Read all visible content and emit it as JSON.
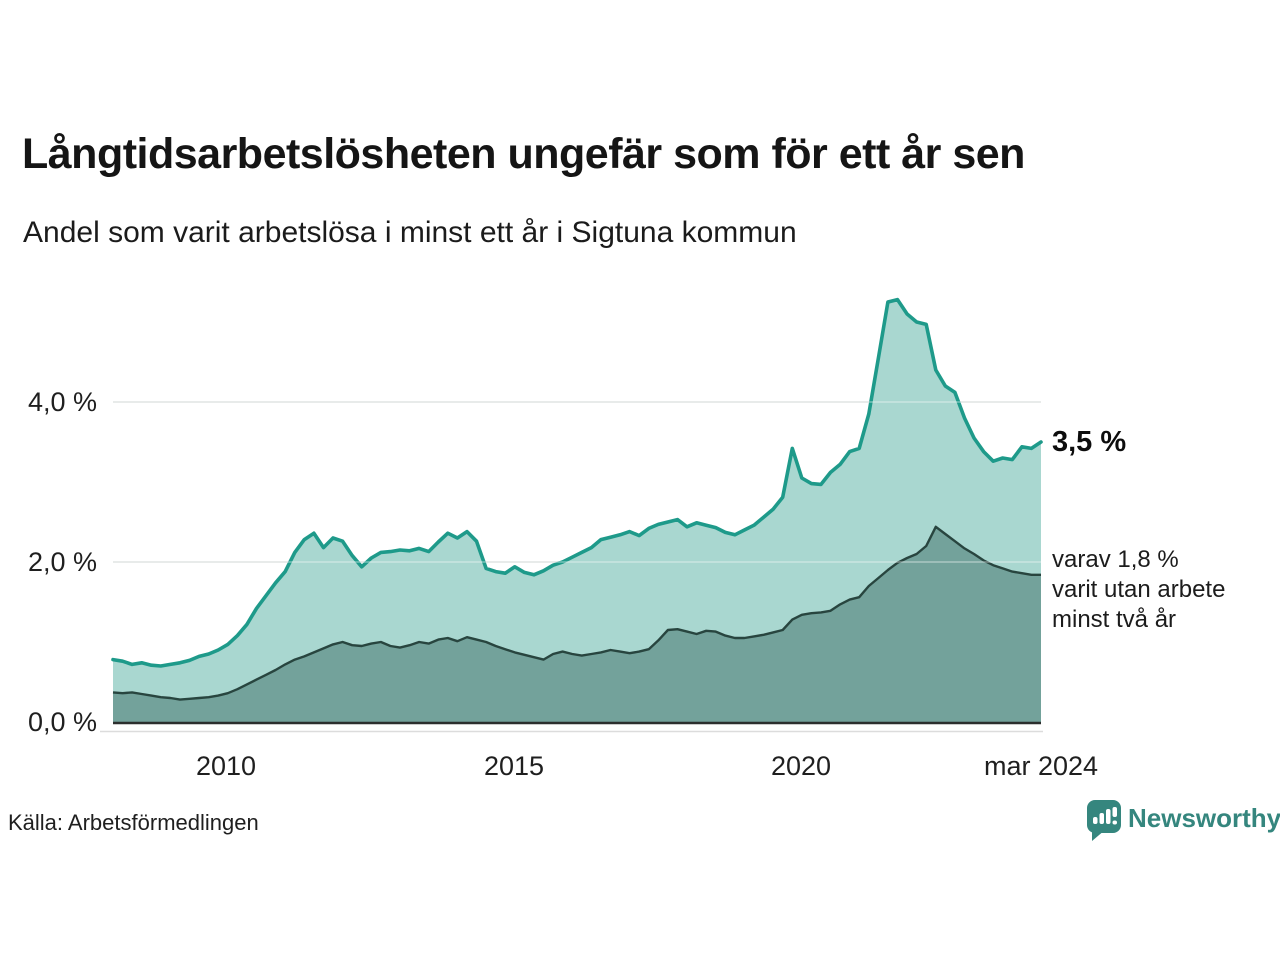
{
  "header": {
    "title": "Långtidsarbetslösheten ungefär som för ett år sen",
    "subtitle": "Andel som varit arbetslösa i minst ett år i Sigtuna kommun"
  },
  "chart_data": {
    "type": "area",
    "title": "Långtidsarbetslösheten ungefär som för ett år sen",
    "subtitle": "Andel som varit arbetslösa i minst ett år i Sigtuna kommun",
    "unit": "%",
    "x_start_year": 2008.0,
    "x_end_year": 2024.1667,
    "x_step_months": 2,
    "x_tick_labels": [
      "2010",
      "2015",
      "2020",
      "mar 2024"
    ],
    "x_tick_years": [
      2010,
      2015,
      2020,
      2024.1667
    ],
    "y_tick_labels": [
      "0,0 %",
      "2,0 %",
      "4,0 %"
    ],
    "y_tick_values": [
      0,
      2,
      4
    ],
    "y_grid_values": [
      2,
      4
    ],
    "ylim": [
      0,
      5.6
    ],
    "grid": "horizontal",
    "legend_position": "right-annotations",
    "series": [
      {
        "name": "andel arbetslösa minst ett år (totalt)",
        "end_label": "3,5 %",
        "end_value": 3.5,
        "line_color": "#1e9a8a",
        "fill_color": "#a6d5ce",
        "values": [
          0.78,
          0.76,
          0.72,
          0.74,
          0.71,
          0.7,
          0.72,
          0.74,
          0.77,
          0.82,
          0.85,
          0.9,
          0.97,
          1.08,
          1.22,
          1.42,
          1.58,
          1.74,
          1.88,
          2.12,
          2.28,
          2.36,
          2.18,
          2.3,
          2.26,
          2.08,
          1.94,
          2.05,
          2.12,
          2.13,
          2.15,
          2.14,
          2.17,
          2.13,
          2.25,
          2.36,
          2.3,
          2.38,
          2.26,
          1.92,
          1.88,
          1.86,
          1.94,
          1.87,
          1.84,
          1.89,
          1.96,
          2.0,
          2.06,
          2.12,
          2.18,
          2.28,
          2.31,
          2.34,
          2.38,
          2.33,
          2.42,
          2.47,
          2.5,
          2.53,
          2.44,
          2.49,
          2.46,
          2.43,
          2.37,
          2.34,
          2.4,
          2.46,
          2.56,
          2.66,
          2.81,
          3.42,
          3.05,
          2.98,
          2.97,
          3.12,
          3.22,
          3.38,
          3.42,
          3.85,
          4.55,
          5.25,
          5.28,
          5.1,
          5.0,
          4.97,
          4.4,
          4.2,
          4.12,
          3.8,
          3.55,
          3.38,
          3.26,
          3.3,
          3.28,
          3.44,
          3.42,
          3.5
        ]
      },
      {
        "name": "varav utan arbete minst två år",
        "end_label": "varav 1,8 % varit utan arbete minst två år",
        "end_value": 1.8,
        "line_color": "#28453f",
        "fill_color": "#73a29b",
        "values": [
          0.37,
          0.36,
          0.37,
          0.35,
          0.33,
          0.31,
          0.3,
          0.28,
          0.29,
          0.3,
          0.31,
          0.33,
          0.36,
          0.41,
          0.47,
          0.53,
          0.59,
          0.65,
          0.72,
          0.78,
          0.82,
          0.87,
          0.92,
          0.97,
          1.0,
          0.96,
          0.95,
          0.98,
          1.0,
          0.95,
          0.93,
          0.96,
          1.0,
          0.98,
          1.03,
          1.05,
          1.01,
          1.06,
          1.03,
          1.0,
          0.95,
          0.91,
          0.87,
          0.84,
          0.81,
          0.78,
          0.85,
          0.88,
          0.85,
          0.83,
          0.85,
          0.87,
          0.9,
          0.88,
          0.86,
          0.88,
          0.91,
          1.02,
          1.15,
          1.16,
          1.13,
          1.1,
          1.14,
          1.13,
          1.08,
          1.05,
          1.05,
          1.07,
          1.09,
          1.12,
          1.15,
          1.28,
          1.34,
          1.36,
          1.37,
          1.39,
          1.47,
          1.53,
          1.56,
          1.7,
          1.8,
          1.9,
          1.99,
          2.05,
          2.1,
          2.2,
          2.44,
          2.35,
          2.26,
          2.17,
          2.1,
          2.02,
          1.96,
          1.92,
          1.88,
          1.86,
          1.84,
          1.84
        ]
      }
    ]
  },
  "annotations": {
    "total_label": "3,5 %",
    "subset_line1": "varav 1,8 %",
    "subset_line2": "varit utan arbete",
    "subset_line3": "minst två år"
  },
  "footer": {
    "source": "Källa: Arbetsförmedlingen",
    "brand": "Newsworthy"
  },
  "icons": {
    "brand_icon": "newsworthy-bar-chart-bubble-icon"
  },
  "colors": {
    "accent_teal": "#1e9a8a",
    "fill_light": "#a6d5ce",
    "fill_dark": "#73a29b",
    "line_dark": "#28453f",
    "grid": "#dfe2e1",
    "axis": "#2c2f2e",
    "brand_teal": "#35867e",
    "text": "#1a1a1a"
  }
}
